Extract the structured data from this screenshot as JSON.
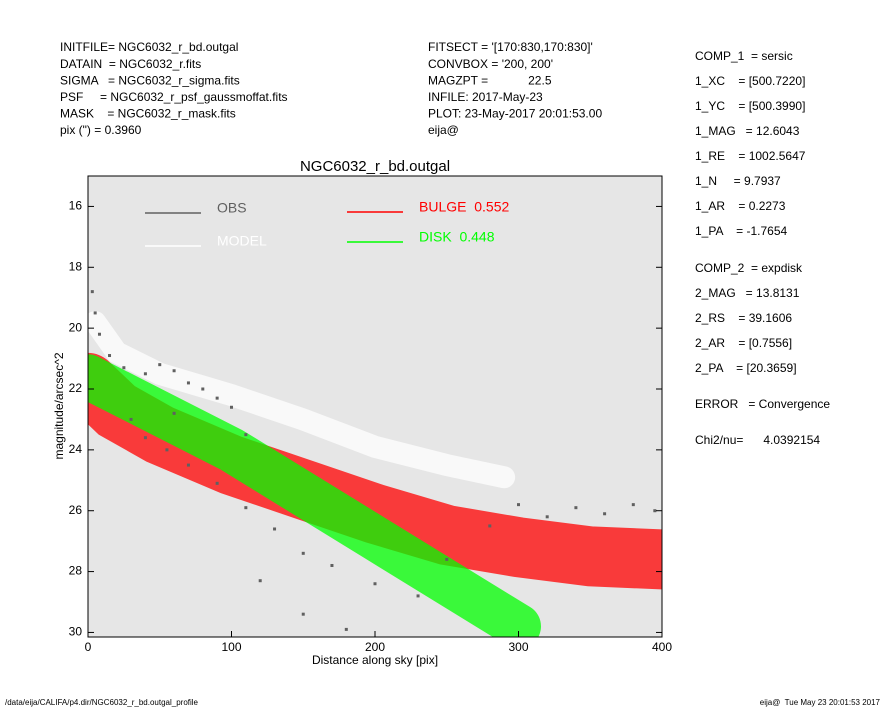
{
  "header": {
    "left": [
      "INITFILE= NGC6032_r_bd.outgal",
      "DATAIN  = NGC6032_r.fits",
      "SIGMA   = NGC6032_r_sigma.fits",
      "PSF     = NGC6032_r_psf_gaussmoffat.fits",
      "MASK    = NGC6032_r_mask.fits",
      "pix (\") = 0.3960"
    ],
    "middle": [
      "FITSECT = '[170:830,170:830]'",
      "CONVBOX = '200, 200'",
      "MAGZPT =            22.5",
      "INFILE: 2017-May-23",
      "PLOT: 23-May-2017 20:01:53.00",
      "eija@"
    ],
    "right": [
      "COMP_1  = sersic",
      "1_XC    = [500.7220]",
      "1_YC    = [500.3990]",
      "1_MAG   = 12.6043",
      "1_RE    = 1002.5647",
      "1_N     = 9.7937",
      "1_AR    = 0.2273",
      "1_PA    = -1.7654",
      "COMP_2  = expdisk",
      "2_MAG   = 13.8131",
      "2_RS    = 39.1606",
      "2_AR    = [0.7556]",
      "2_PA    = [20.3659]",
      "ERROR   = Convergence",
      "Chi2/nu=      4.0392154"
    ]
  },
  "footer": {
    "left": "/data/eija/CALIFA/p4.dir/NGC6032_r_bd.outgal_profile",
    "right": "eija@  Tue May 23 20:01:53 2017"
  },
  "chart_data": {
    "type": "line",
    "title": "NGC6032_r_bd.outgal",
    "x_label": "Distance along sky [pix]",
    "y_label": "magnitude/arcsec^2",
    "xlim": [
      0,
      400
    ],
    "ylim": [
      30.15,
      15
    ],
    "xticks": [
      0,
      100,
      200,
      300,
      400
    ],
    "yticks": [
      16,
      18,
      20,
      22,
      24,
      26,
      28,
      30
    ],
    "series": [
      {
        "name": "OBS",
        "type": "scatter",
        "color": "#606060",
        "x": [
          3,
          5,
          8,
          15,
          25,
          40,
          50,
          60,
          70,
          80,
          90,
          100,
          30,
          40,
          55,
          70,
          90,
          110,
          130,
          150,
          170,
          200,
          230,
          250,
          280,
          300,
          320,
          340,
          360,
          380,
          395,
          150,
          180,
          120,
          60,
          110
        ],
        "values": [
          18.8,
          19.5,
          20.2,
          20.9,
          21.3,
          21.5,
          21.2,
          21.4,
          21.8,
          22.0,
          22.3,
          22.6,
          23.0,
          23.6,
          24.0,
          24.5,
          25.1,
          25.9,
          26.6,
          27.4,
          27.8,
          28.4,
          28.8,
          27.6,
          26.5,
          25.8,
          26.2,
          25.9,
          26.1,
          25.8,
          26.0,
          29.4,
          29.9,
          28.3,
          22.8,
          23.5
        ]
      },
      {
        "name": "MODEL",
        "type": "line",
        "color": "#ffffff",
        "x": [
          5,
          20,
          50,
          100,
          150,
          200,
          250,
          290
        ],
        "values": [
          19.8,
          20.8,
          21.5,
          22.2,
          23.0,
          23.9,
          24.5,
          24.9
        ]
      },
      {
        "name": "BULGE  0.552",
        "type": "line",
        "color": "#ff0000",
        "x": [
          0,
          20,
          50,
          100,
          150,
          200,
          250,
          300,
          350,
          400
        ],
        "values": [
          21.8,
          22.7,
          23.5,
          24.5,
          25.3,
          26.1,
          26.8,
          27.2,
          27.5,
          27.6
        ]
      },
      {
        "name": "DISK  0.448",
        "type": "line",
        "color": "#00ff00",
        "x": [
          0,
          100,
          200,
          300
        ],
        "values": [
          21.6,
          24.0,
          26.9,
          29.8
        ]
      }
    ]
  }
}
